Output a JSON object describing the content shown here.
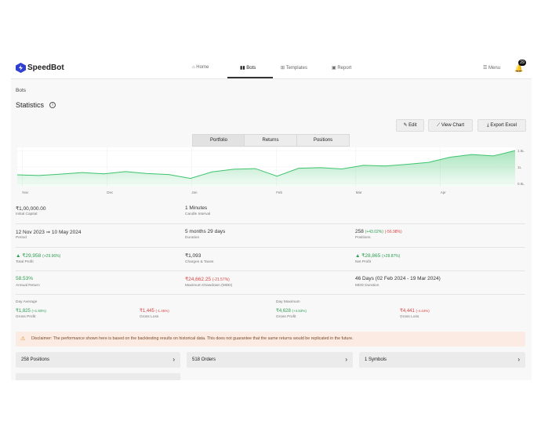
{
  "nav": {
    "brand": "SpeedBot",
    "items": [
      "Home",
      "Bots",
      "Templates",
      "Report"
    ],
    "menu": "Menu",
    "badge": "29"
  },
  "breadcrumb": "Bots",
  "title": "Statistics",
  "buttons": [
    "Edit",
    "View Chart",
    "Export Excel"
  ],
  "tabs": [
    "Portfolio",
    "Returns",
    "Positions"
  ],
  "chart_data": {
    "type": "area",
    "color": "#3ec46d",
    "x_labels": [
      "Nov",
      "Dec",
      "Jan",
      "Feb",
      "Mar",
      "Apr"
    ],
    "values": [
      0.76,
      0.74,
      0.78,
      0.83,
      0.79,
      0.86,
      0.8,
      0.77,
      0.65,
      0.85,
      0.93,
      0.95,
      0.72,
      0.96,
      0.98,
      0.94,
      1.05,
      1.03,
      1.08,
      1.14,
      1.3,
      1.38,
      1.34,
      1.5
    ],
    "ylim": [
      0.4,
      1.6
    ],
    "yticks": [
      {
        "value": 1.5,
        "label": "1.5L"
      },
      {
        "value": 1,
        "label": "1L"
      },
      {
        "value": 0.5,
        "label": "0.5L"
      }
    ]
  },
  "stats": {
    "initial_capital": {
      "value": "₹1,00,000.00",
      "label": "Initial Capital"
    },
    "candle_interval": {
      "value": "1 Minutes",
      "label": "Candle Interval"
    },
    "period": {
      "value": "12 Nov 2023 ⇒ 10 May 2024",
      "label": "Period"
    },
    "duration": {
      "value": "5 months 29 days",
      "label": "Duration"
    },
    "positions": {
      "value": "258",
      "pos": "(+43.02%)",
      "neg": "(-56.98%)",
      "label": "Positions"
    },
    "total_profit": {
      "value": "▲ ₹29,958",
      "pct": "(+29.96%)",
      "label": "Total Profit"
    },
    "charges": {
      "value": "₹1,093",
      "label": "Charges & Taxes"
    },
    "net_profit": {
      "value": "▲ ₹28,865",
      "pct": "(+28.87%)",
      "label": "Net Profit"
    },
    "annual_return": {
      "value": "58.53%",
      "label": "Annual Return"
    },
    "mdd": {
      "value": "₹24,662.25",
      "pct": "(-21.57%)",
      "label": "Maximum Drawdown (MDD)"
    },
    "mdd_duration": {
      "value": "46 Days (02 Feb 2024 - 19 Mar 2024)",
      "label": "MDD Duration"
    }
  },
  "day_average": {
    "title": "Day Average",
    "profit": "₹1,825",
    "profit_pct": "(+1.83%)",
    "profit_label": "Gross Profit",
    "loss": "₹1,445",
    "loss_pct": "(-1.45%)",
    "loss_label": "Gross Loss"
  },
  "day_maximum": {
    "title": "Day Maximum",
    "profit": "₹4,628",
    "profit_pct": "(+4.63%)",
    "profit_label": "Gross Profit",
    "loss": "₹4,441",
    "loss_pct": "(-4.44%)",
    "loss_label": "Gross Loss"
  },
  "disclaimer": "Disclaimer: The performance shown here is based on the backtesting results on historical data. This does not guarantee that the same returns would be replicated in the future.",
  "cards": [
    "258 Positions",
    "518 Orders",
    "1 Symbols"
  ]
}
